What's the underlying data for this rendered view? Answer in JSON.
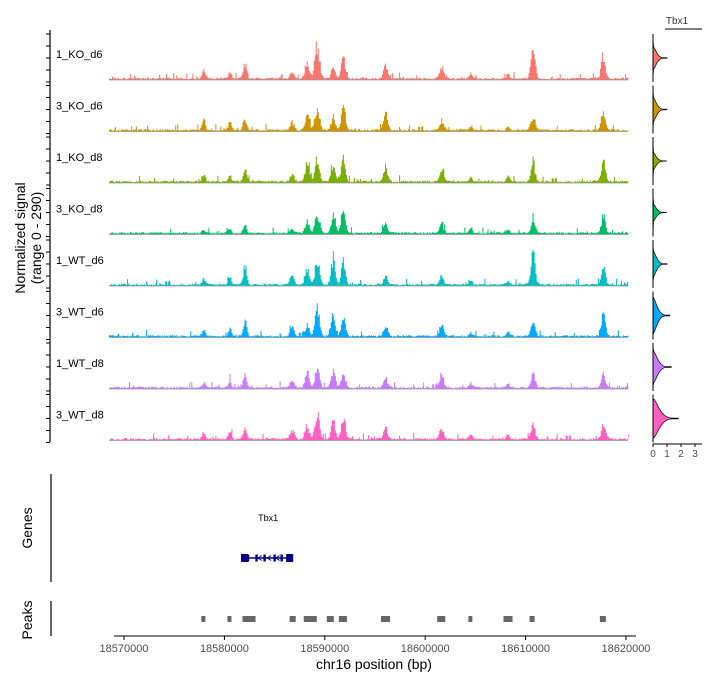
{
  "chart_data": {
    "type": "area",
    "ylabel_line1": "Normalized signal",
    "ylabel_line2": "(range 0 - 290)",
    "xlabel": "chr16 position (bp)",
    "chromosome": "chr16",
    "xlim": [
      18569000,
      18621000
    ],
    "ylim": [
      0,
      290
    ],
    "x_ticks": [
      18570000,
      18580000,
      18590000,
      18600000,
      18610000,
      18620000
    ],
    "x_tick_labels": [
      "18570000",
      "18580000",
      "18590000",
      "18600000",
      "18610000",
      "18620000"
    ],
    "track_start": 18568500,
    "track_end": 18620200,
    "peak_centers": [
      {
        "pos": 18577900,
        "w": 300
      },
      {
        "pos": 18580500,
        "w": 300
      },
      {
        "pos": 18582000,
        "w": 350
      },
      {
        "pos": 18586700,
        "w": 400
      },
      {
        "pos": 18588200,
        "w": 400
      },
      {
        "pos": 18589200,
        "w": 450
      },
      {
        "pos": 18590800,
        "w": 400
      },
      {
        "pos": 18591800,
        "w": 400
      },
      {
        "pos": 18596000,
        "w": 400
      },
      {
        "pos": 18601600,
        "w": 400
      },
      {
        "pos": 18604500,
        "w": 300
      },
      {
        "pos": 18608200,
        "w": 300
      },
      {
        "pos": 18610700,
        "w": 400
      },
      {
        "pos": 18617700,
        "w": 400
      }
    ],
    "series": [
      {
        "name": "1_KO_d6",
        "color": "#F8766D",
        "heights": [
          0.22,
          0.2,
          0.4,
          0.18,
          0.42,
          0.9,
          0.28,
          0.55,
          0.32,
          0.3,
          0.12,
          0.1,
          0.92,
          0.6
        ],
        "violin_max": 1.0,
        "violin_width": 0.5
      },
      {
        "name": "3_KO_d6",
        "color": "#CD9600",
        "heights": [
          0.28,
          0.2,
          0.3,
          0.2,
          0.45,
          0.55,
          0.35,
          0.55,
          0.45,
          0.28,
          0.12,
          0.1,
          0.38,
          0.5
        ],
        "violin_max": 1.0,
        "violin_width": 0.55
      },
      {
        "name": "1_KO_d8",
        "color": "#7CAE00",
        "heights": [
          0.18,
          0.16,
          0.3,
          0.18,
          0.5,
          0.6,
          0.4,
          0.6,
          0.35,
          0.3,
          0.12,
          0.12,
          0.48,
          0.55
        ],
        "violin_max": 0.95,
        "violin_width": 0.3
      },
      {
        "name": "3_KO_d8",
        "color": "#00BE67",
        "heights": [
          0.1,
          0.12,
          0.22,
          0.12,
          0.3,
          0.5,
          0.45,
          0.82,
          0.22,
          0.25,
          0.1,
          0.1,
          0.38,
          0.45
        ],
        "violin_max": 0.95,
        "violin_width": 0.3
      },
      {
        "name": "1_WT_d6",
        "color": "#00BFC4",
        "heights": [
          0.15,
          0.2,
          0.5,
          0.22,
          0.4,
          0.6,
          0.72,
          0.62,
          0.2,
          0.18,
          0.1,
          0.12,
          0.88,
          0.42
        ],
        "violin_max": 1.0,
        "violin_width": 0.6
      },
      {
        "name": "3_WT_d6",
        "color": "#00A9FF",
        "heights": [
          0.15,
          0.2,
          0.38,
          0.22,
          0.3,
          0.75,
          0.6,
          0.55,
          0.28,
          0.32,
          0.1,
          0.12,
          0.45,
          0.55
        ],
        "violin_max": 1.2,
        "violin_width": 0.9
      },
      {
        "name": "1_WT_d8",
        "color": "#C77CFF",
        "heights": [
          0.15,
          0.18,
          0.3,
          0.18,
          0.4,
          0.52,
          0.45,
          0.4,
          0.25,
          0.38,
          0.1,
          0.12,
          0.35,
          0.4
        ],
        "violin_max": 1.3,
        "violin_width": 0.8
      },
      {
        "name": "3_WT_d8",
        "color": "#FF61C3",
        "heights": [
          0.18,
          0.22,
          0.3,
          0.25,
          0.4,
          0.62,
          0.45,
          0.55,
          0.3,
          0.28,
          0.12,
          0.12,
          0.45,
          0.38
        ],
        "violin_max": 1.8,
        "violin_width": 1.0
      }
    ],
    "violin_gene": "Tbx1",
    "violin_xlim": [
      0,
      3.5
    ],
    "violin_ticks": [
      0,
      1,
      2,
      3
    ],
    "violin_tick_labels": [
      "0",
      "1",
      "2",
      "3"
    ],
    "genes_label": "Genes",
    "gene": {
      "name": "Tbx1",
      "start": 18582000,
      "end": 18586700,
      "strand": "-",
      "exons": [
        18582000,
        18582350,
        18583200,
        18584000,
        18585000,
        18585700,
        18586500
      ]
    },
    "peaks_label": "Peaks",
    "peaks": [
      {
        "start": 18577700,
        "end": 18578100
      },
      {
        "start": 18580300,
        "end": 18580700
      },
      {
        "start": 18581800,
        "end": 18583100
      },
      {
        "start": 18586500,
        "end": 18587100
      },
      {
        "start": 18587900,
        "end": 18589200
      },
      {
        "start": 18590200,
        "end": 18590900
      },
      {
        "start": 18591400,
        "end": 18592200
      },
      {
        "start": 18595600,
        "end": 18596500
      },
      {
        "start": 18601200,
        "end": 18602000
      },
      {
        "start": 18604300,
        "end": 18604700
      },
      {
        "start": 18607800,
        "end": 18608700
      },
      {
        "start": 18610400,
        "end": 18610900
      },
      {
        "start": 18617400,
        "end": 18618000
      }
    ],
    "colors": {
      "gene": "#00008B",
      "peak": "#666666",
      "axis": "#000000",
      "tick_text": "#4D4D4D",
      "baseline": "#999999"
    }
  }
}
